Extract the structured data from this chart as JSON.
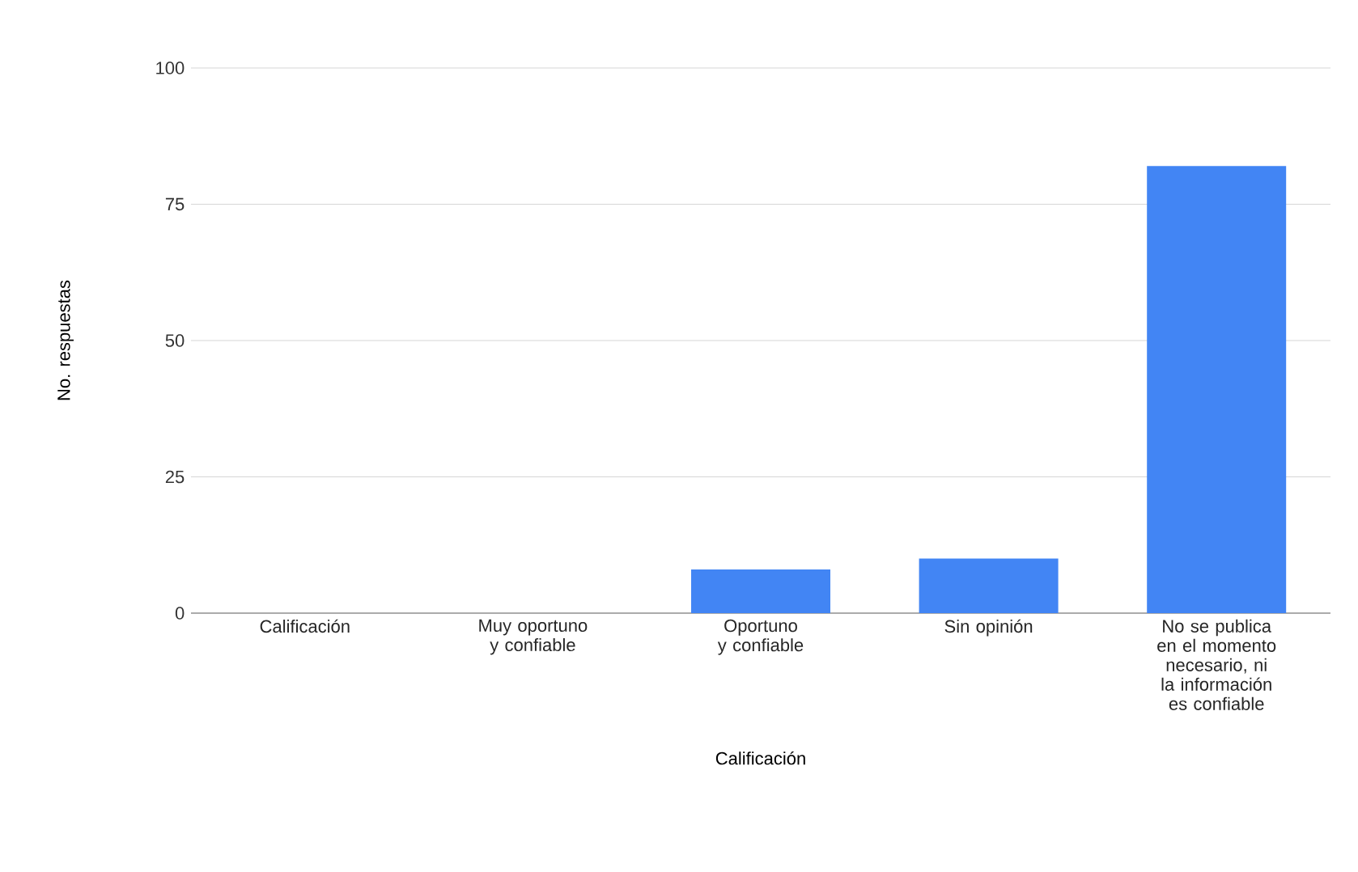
{
  "chart_data": {
    "type": "bar",
    "xlabel": "Calificación",
    "ylabel": "No. respuestas",
    "categories": [
      "Calificación",
      "Muy oportuno y confiable",
      "Oportuno y confiable",
      "Sin opinión",
      "No se publica en el momento necesario, ni la información es confiable"
    ],
    "values": [
      0,
      0,
      8,
      10,
      82
    ],
    "color": "#4285f4",
    "ylim": [
      0,
      100
    ],
    "yticks": [
      0,
      25,
      50,
      75,
      100
    ],
    "grid": "y"
  }
}
